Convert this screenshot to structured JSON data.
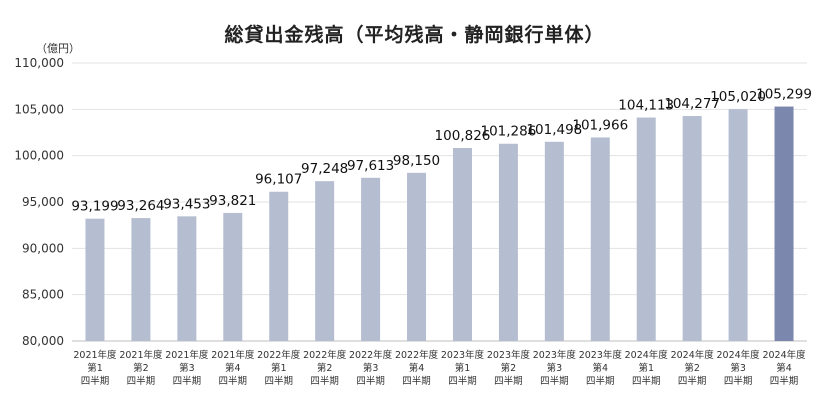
{
  "chart_data": {
    "type": "bar",
    "title": "総貸出金残高（平均残高・静岡銀行単体）",
    "unit": "（億円）",
    "categories": [
      [
        "2021年度",
        "第1",
        "四半期"
      ],
      [
        "2021年度",
        "第2",
        "四半期"
      ],
      [
        "2021年度",
        "第3",
        "四半期"
      ],
      [
        "2021年度",
        "第4",
        "四半期"
      ],
      [
        "2022年度",
        "第1",
        "四半期"
      ],
      [
        "2022年度",
        "第2",
        "四半期"
      ],
      [
        "2022年度",
        "第3",
        "四半期"
      ],
      [
        "2022年度",
        "第4",
        "四半期"
      ],
      [
        "2023年度",
        "第1",
        "四半期"
      ],
      [
        "2023年度",
        "第2",
        "四半期"
      ],
      [
        "2023年度",
        "第3",
        "四半期"
      ],
      [
        "2023年度",
        "第4",
        "四半期"
      ],
      [
        "2024年度",
        "第1",
        "四半期"
      ],
      [
        "2024年度",
        "第2",
        "四半期"
      ],
      [
        "2024年度",
        "第3",
        "四半期"
      ],
      [
        "2024年度",
        "第4",
        "四半期"
      ]
    ],
    "values": [
      93199,
      93264,
      93453,
      93821,
      96107,
      97248,
      97613,
      98150,
      100826,
      101286,
      101498,
      101966,
      104113,
      104277,
      105020,
      105299
    ],
    "value_labels": [
      "93,199",
      "93,264",
      "93,453",
      "93,821",
      "96,107",
      "97,248",
      "97,613",
      "98,150",
      "100,826",
      "101,286",
      "101,498",
      "101,966",
      "104,113",
      "104,277",
      "105,020",
      "105,299"
    ],
    "ylim": [
      80000,
      110000
    ],
    "yticks": [
      80000,
      85000,
      90000,
      95000,
      100000,
      105000,
      110000
    ],
    "ytick_labels": [
      "80,000",
      "85,000",
      "90,000",
      "95,000",
      "100,000",
      "105,000",
      "110,000"
    ],
    "grid": true,
    "legend": "none",
    "colors": {
      "bar": "#b5bdd0",
      "highlight": "#7b87ad",
      "grid": "#e3e3e3",
      "axis": "#bfbfbf"
    },
    "highlight_index": 15
  }
}
